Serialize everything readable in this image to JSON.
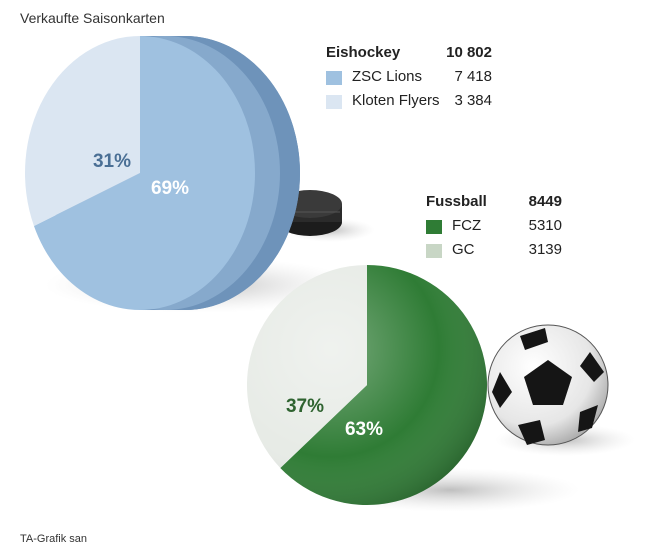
{
  "title": "Verkaufte Saisonkarten",
  "source": "TA-Grafik san",
  "colors": {
    "zsc": "#9fc1e0",
    "kloten": "#dbe6f2",
    "hockey_side": "#6e93ba",
    "fcz": "#2f7c35",
    "gc": "#e7ebe6",
    "pct_dark_blue": "#4a6f95",
    "pct_dark_green": "#2f6330"
  },
  "legend_hockey": {
    "heading": "Eishockey",
    "total": "10 802",
    "items": [
      {
        "label": "ZSC Lions",
        "value": "7 418"
      },
      {
        "label": "Kloten Flyers",
        "value": "3 384"
      }
    ]
  },
  "legend_football": {
    "heading": "Fussball",
    "total": "8449",
    "items": [
      {
        "label": "FCZ",
        "value": "5310"
      },
      {
        "label": "GC",
        "value": "3139"
      }
    ]
  },
  "chart_data": [
    {
      "type": "pie",
      "title": "Eishockey",
      "categories": [
        "ZSC Lions",
        "Kloten Flyers"
      ],
      "values": [
        7418,
        3384
      ],
      "percent_labels": [
        "69%",
        "31%"
      ],
      "total": 10802
    },
    {
      "type": "pie",
      "title": "Fussball",
      "categories": [
        "FCZ",
        "GC"
      ],
      "values": [
        5310,
        3139
      ],
      "percent_labels": [
        "63%",
        "37%"
      ],
      "total": 8449
    }
  ]
}
